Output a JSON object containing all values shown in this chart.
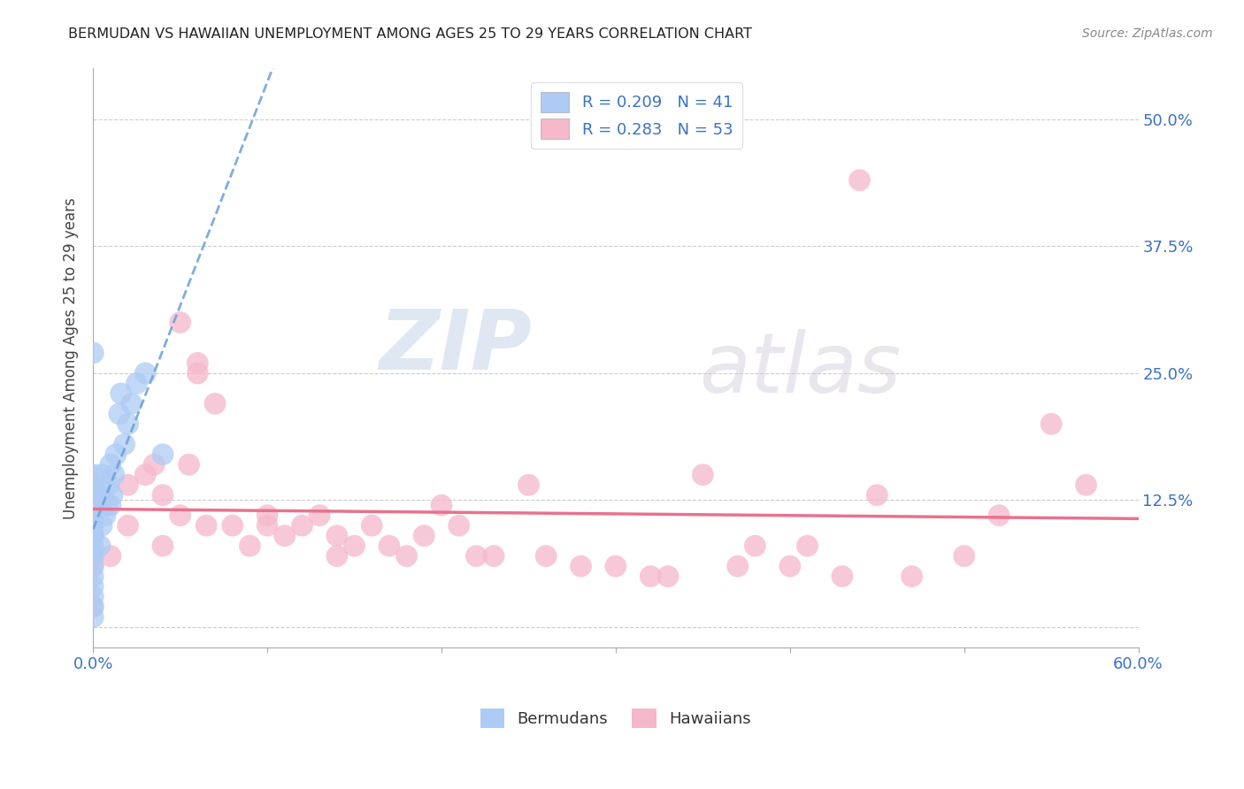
{
  "title": "BERMUDAN VS HAWAIIAN UNEMPLOYMENT AMONG AGES 25 TO 29 YEARS CORRELATION CHART",
  "source": "Source: ZipAtlas.com",
  "ylabel": "Unemployment Among Ages 25 to 29 years",
  "xlim": [
    0.0,
    0.6
  ],
  "ylim": [
    -0.02,
    0.55
  ],
  "xticks": [
    0.0,
    0.1,
    0.2,
    0.3,
    0.4,
    0.5,
    0.6
  ],
  "xticklabels": [
    "0.0%",
    "",
    "",
    "",
    "",
    "",
    "60.0%"
  ],
  "ytick_positions": [
    0.0,
    0.125,
    0.25,
    0.375,
    0.5
  ],
  "ytick_labels_right": [
    "",
    "12.5%",
    "25.0%",
    "37.5%",
    "50.0%"
  ],
  "legend_R_bermudan": "R = 0.209",
  "legend_N_bermudan": "N = 41",
  "legend_R_hawaiian": "R = 0.283",
  "legend_N_hawaiian": "N = 53",
  "bermudan_color": "#aecbf5",
  "hawaiian_color": "#f5b8cb",
  "bermudan_line_color": "#6a9fd8",
  "hawaiian_line_color": "#e8728f",
  "watermark_zip": "ZIP",
  "watermark_atlas": "atlas",
  "bermudan_x": [
    0.0,
    0.0,
    0.0,
    0.0,
    0.0,
    0.0,
    0.0,
    0.0,
    0.0,
    0.0,
    0.0,
    0.0,
    0.0,
    0.0,
    0.0,
    0.0,
    0.0,
    0.0,
    0.0,
    0.0,
    0.004,
    0.004,
    0.005,
    0.005,
    0.005,
    0.007,
    0.008,
    0.009,
    0.01,
    0.01,
    0.011,
    0.012,
    0.013,
    0.015,
    0.016,
    0.018,
    0.02,
    0.022,
    0.025,
    0.03,
    0.04
  ],
  "bermudan_y": [
    0.01,
    0.02,
    0.03,
    0.04,
    0.05,
    0.06,
    0.07,
    0.07,
    0.08,
    0.09,
    0.09,
    0.1,
    0.1,
    0.11,
    0.11,
    0.12,
    0.13,
    0.14,
    0.15,
    0.27,
    0.08,
    0.12,
    0.1,
    0.13,
    0.15,
    0.11,
    0.12,
    0.14,
    0.12,
    0.16,
    0.13,
    0.15,
    0.17,
    0.21,
    0.23,
    0.18,
    0.2,
    0.22,
    0.24,
    0.25,
    0.17
  ],
  "hawaiian_x": [
    0.0,
    0.0,
    0.01,
    0.02,
    0.02,
    0.03,
    0.035,
    0.04,
    0.04,
    0.05,
    0.05,
    0.055,
    0.06,
    0.06,
    0.065,
    0.07,
    0.08,
    0.09,
    0.1,
    0.1,
    0.11,
    0.12,
    0.13,
    0.14,
    0.14,
    0.15,
    0.16,
    0.17,
    0.18,
    0.19,
    0.2,
    0.21,
    0.22,
    0.23,
    0.25,
    0.26,
    0.28,
    0.3,
    0.32,
    0.33,
    0.35,
    0.37,
    0.38,
    0.4,
    0.41,
    0.43,
    0.44,
    0.45,
    0.47,
    0.5,
    0.52,
    0.55,
    0.57
  ],
  "hawaiian_y": [
    0.06,
    0.02,
    0.07,
    0.1,
    0.14,
    0.15,
    0.16,
    0.08,
    0.13,
    0.11,
    0.3,
    0.16,
    0.25,
    0.26,
    0.1,
    0.22,
    0.1,
    0.08,
    0.1,
    0.11,
    0.09,
    0.1,
    0.11,
    0.09,
    0.07,
    0.08,
    0.1,
    0.08,
    0.07,
    0.09,
    0.12,
    0.1,
    0.07,
    0.07,
    0.14,
    0.07,
    0.06,
    0.06,
    0.05,
    0.05,
    0.15,
    0.06,
    0.08,
    0.06,
    0.08,
    0.05,
    0.44,
    0.13,
    0.05,
    0.07,
    0.11,
    0.2,
    0.14
  ]
}
